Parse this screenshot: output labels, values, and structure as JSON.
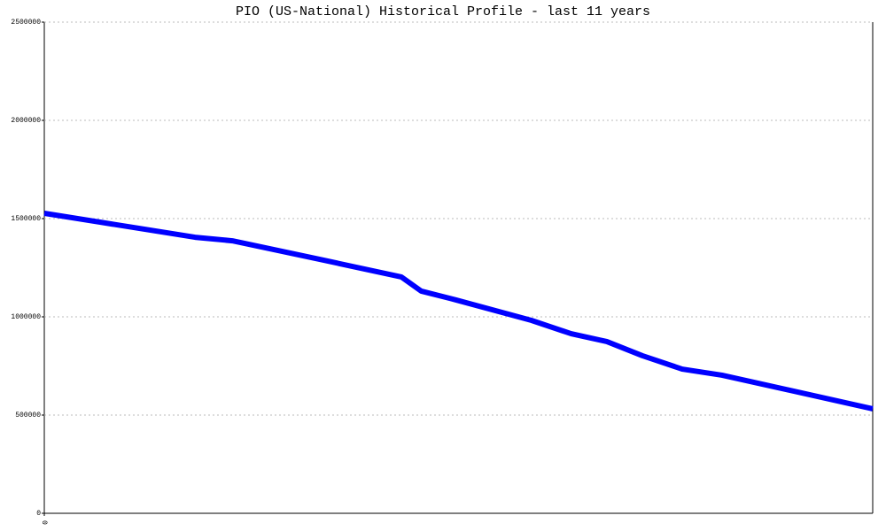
{
  "chart_data": {
    "type": "line",
    "title": "PIO (US-National) Historical Profile - last 11 years",
    "x": [
      0,
      18.2,
      22.7,
      33.2,
      43.1,
      45.5,
      49.7,
      58.8,
      63.6,
      67.9,
      72.2,
      77.0,
      81.8,
      100
    ],
    "series": [
      {
        "name": "PIO",
        "color": "#0000ff",
        "values": [
          1527000,
          1405000,
          1387000,
          1293000,
          1203000,
          1131000,
          1086000,
          982000,
          914000,
          874000,
          802000,
          734000,
          703000,
          532000
        ]
      }
    ],
    "xlim": [
      0,
      100
    ],
    "xticks": [
      0
    ],
    "ylim": [
      0,
      2500000
    ],
    "yticks": [
      0,
      500000,
      1000000,
      1500000,
      2000000,
      2500000
    ],
    "grid": true
  }
}
